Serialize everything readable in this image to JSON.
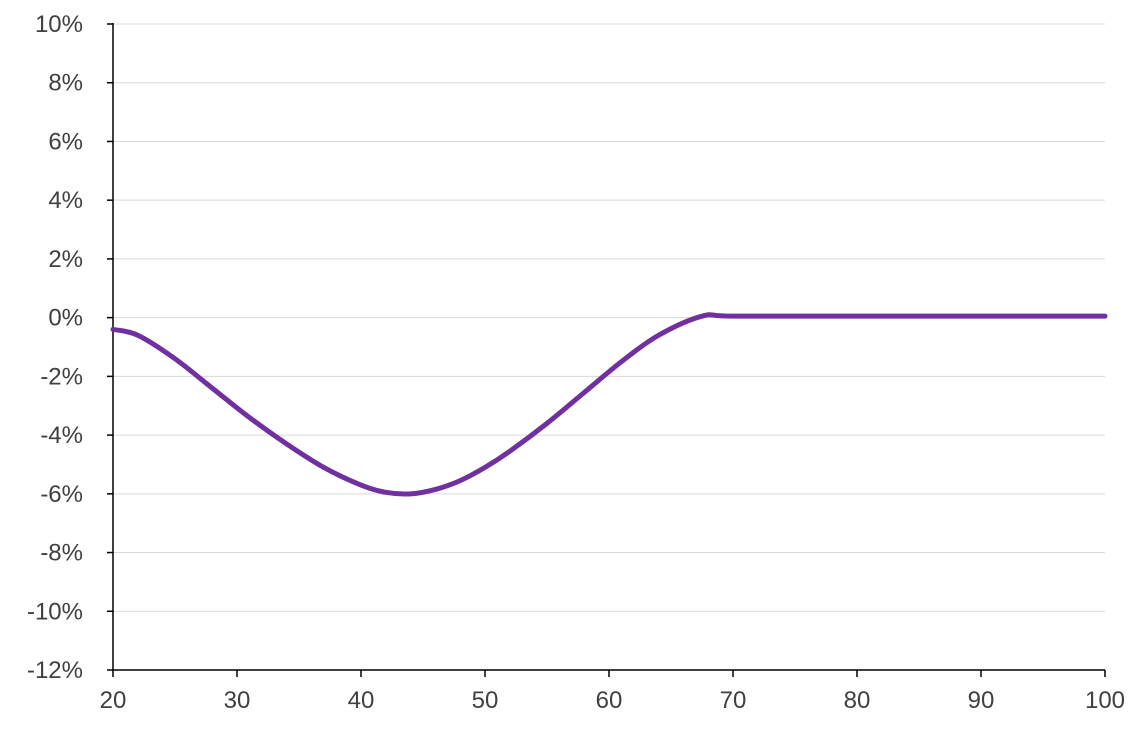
{
  "chart_data": {
    "type": "line",
    "title": "",
    "xlabel": "",
    "ylabel": "",
    "xlim": [
      20,
      100
    ],
    "ylim": [
      -12,
      10
    ],
    "x_ticks": [
      20,
      30,
      40,
      50,
      60,
      70,
      80,
      90,
      100
    ],
    "x_tick_labels": [
      "20",
      "30",
      "40",
      "50",
      "60",
      "70",
      "80",
      "90",
      "100"
    ],
    "y_ticks": [
      10,
      8,
      6,
      4,
      2,
      0,
      -2,
      -4,
      -6,
      -8,
      -10,
      -12
    ],
    "y_tick_labels": [
      "10%",
      "8%",
      "6%",
      "4%",
      "2%",
      "0%",
      "-2%",
      "-4%",
      "-6%",
      "-8%",
      "-10%",
      "-12%"
    ],
    "grid": "horizontal",
    "legend": "none",
    "series": [
      {
        "color": "#7030a0",
        "x": [
          20,
          22,
          25,
          28,
          31,
          34,
          37,
          40,
          42,
          44,
          46,
          48,
          50,
          52,
          55,
          58,
          61,
          64,
          67.5,
          70,
          80,
          90,
          100
        ],
        "y": [
          -0.4,
          -0.6,
          -1.4,
          -2.4,
          -3.4,
          -4.3,
          -5.1,
          -5.7,
          -5.95,
          -6.0,
          -5.85,
          -5.55,
          -5.1,
          -4.55,
          -3.6,
          -2.55,
          -1.5,
          -0.6,
          0.05,
          0.05,
          0.05,
          0.05,
          0.05
        ]
      }
    ],
    "colors": {
      "gridline": "#d9d9d9",
      "axis": "#000000",
      "tick_text": "#404040"
    }
  }
}
